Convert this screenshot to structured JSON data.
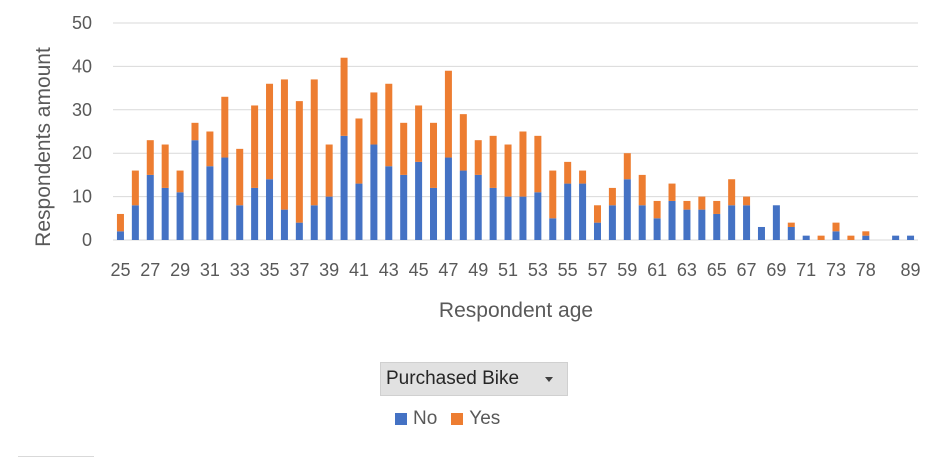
{
  "chart_data": {
    "type": "bar",
    "stacked": true,
    "title": "",
    "xlabel": "Respondent age",
    "ylabel": "Respondents amount",
    "ylim": [
      0,
      50
    ],
    "yticks": [
      0,
      10,
      20,
      30,
      40,
      50
    ],
    "grid": true,
    "legend_position": "bottom",
    "legend_title": "Purchased Bike",
    "categories": [
      "25",
      "26",
      "27",
      "28",
      "29",
      "30",
      "31",
      "32",
      "33",
      "34",
      "35",
      "36",
      "37",
      "38",
      "39",
      "40",
      "41",
      "42",
      "43",
      "44",
      "45",
      "46",
      "47",
      "48",
      "49",
      "50",
      "51",
      "52",
      "53",
      "54",
      "55",
      "56",
      "57",
      "58",
      "59",
      "60",
      "61",
      "62",
      "63",
      "64",
      "65",
      "66",
      "67",
      "68",
      "69",
      "70",
      "71",
      "72",
      "73",
      "74",
      "78",
      "79",
      "80",
      "89"
    ],
    "visible_tick_labels": [
      "25",
      "27",
      "29",
      "31",
      "33",
      "35",
      "37",
      "39",
      "41",
      "43",
      "45",
      "47",
      "49",
      "51",
      "53",
      "55",
      "57",
      "59",
      "61",
      "63",
      "65",
      "67",
      "69",
      "71",
      "73",
      "78",
      "89"
    ],
    "series": [
      {
        "name": "No",
        "color": "#4472c4",
        "values": [
          2,
          8,
          15,
          12,
          11,
          23,
          17,
          19,
          8,
          12,
          14,
          7,
          4,
          8,
          10,
          24,
          13,
          22,
          17,
          15,
          18,
          12,
          19,
          16,
          15,
          12,
          10,
          10,
          11,
          5,
          13,
          13,
          4,
          8,
          14,
          8,
          5,
          9,
          7,
          7,
          6,
          8,
          8,
          3,
          8,
          3,
          1,
          0,
          2,
          0,
          1,
          0,
          1,
          1
        ]
      },
      {
        "name": "Yes",
        "color": "#ed7d31",
        "values": [
          4,
          8,
          8,
          10,
          5,
          4,
          8,
          14,
          13,
          19,
          22,
          30,
          28,
          29,
          12,
          18,
          15,
          12,
          19,
          12,
          13,
          15,
          20,
          13,
          8,
          12,
          12,
          15,
          13,
          11,
          5,
          3,
          4,
          4,
          6,
          7,
          4,
          4,
          2,
          3,
          3,
          6,
          2,
          0,
          0,
          1,
          0,
          1,
          2,
          1,
          1,
          0,
          0,
          0
        ]
      }
    ]
  },
  "legend": {
    "filter_label": "Purchased Bike",
    "items": [
      {
        "label": "No",
        "color": "#4472c4"
      },
      {
        "label": "Yes",
        "color": "#ed7d31"
      }
    ]
  }
}
